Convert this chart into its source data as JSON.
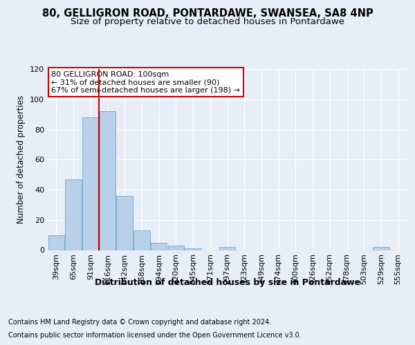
{
  "title1": "80, GELLIGRON ROAD, PONTARDAWE, SWANSEA, SA8 4NP",
  "title2": "Size of property relative to detached houses in Pontardawe",
  "xlabel": "Distribution of detached houses by size in Pontardawe",
  "ylabel": "Number of detached properties",
  "footer1": "Contains HM Land Registry data © Crown copyright and database right 2024.",
  "footer2": "Contains public sector information licensed under the Open Government Licence v3.0.",
  "categories": [
    "39sqm",
    "65sqm",
    "91sqm",
    "116sqm",
    "142sqm",
    "168sqm",
    "194sqm",
    "220sqm",
    "245sqm",
    "271sqm",
    "297sqm",
    "323sqm",
    "349sqm",
    "374sqm",
    "400sqm",
    "426sqm",
    "452sqm",
    "478sqm",
    "503sqm",
    "529sqm",
    "555sqm"
  ],
  "values": [
    10,
    47,
    88,
    92,
    36,
    13,
    5,
    3,
    1,
    0,
    2,
    0,
    0,
    0,
    0,
    0,
    0,
    0,
    0,
    2,
    0
  ],
  "bar_color": "#b8d0ea",
  "bar_edge_color": "#7aafd4",
  "vline_color": "#cc0000",
  "vline_x": 2.5,
  "annotation_text": "80 GELLIGRON ROAD: 100sqm\n← 31% of detached houses are smaller (90)\n67% of semi-detached houses are larger (198) →",
  "annotation_box_color": "#ffffff",
  "annotation_box_edge": "#cc0000",
  "ylim": [
    0,
    120
  ],
  "yticks": [
    0,
    20,
    40,
    60,
    80,
    100,
    120
  ],
  "background_color": "#e8eef8",
  "plot_bg_color": "#e8eef8",
  "grid_color": "#ffffff",
  "title1_fontsize": 10.5,
  "title2_fontsize": 9.5,
  "xlabel_fontsize": 9,
  "ylabel_fontsize": 8.5,
  "tick_fontsize": 8,
  "footer_fontsize": 7
}
